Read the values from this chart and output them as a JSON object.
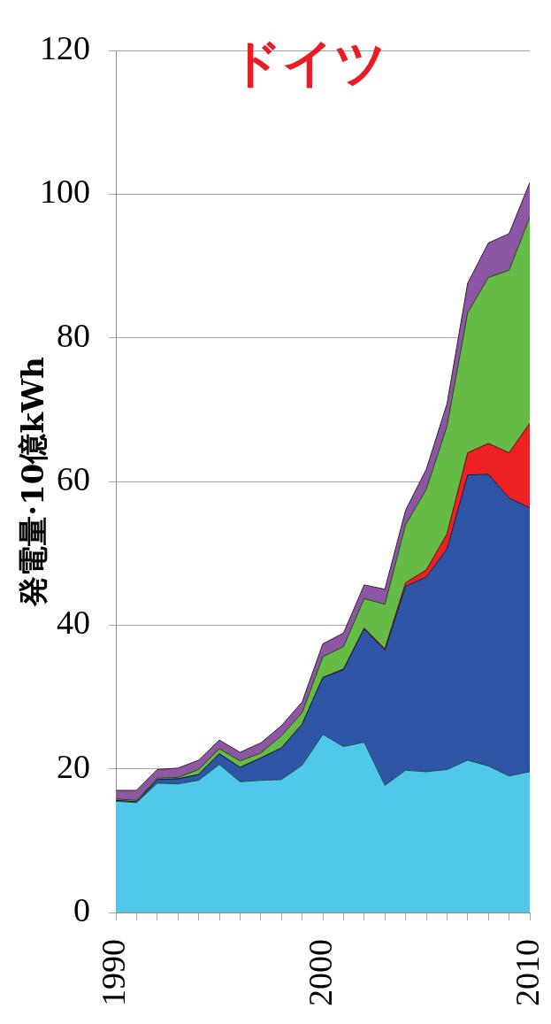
{
  "chart_data": {
    "type": "area",
    "title": "ドイツ",
    "ylabel": "発電量·10億kWh",
    "stacked": true,
    "grid": "y",
    "x": [
      1990,
      1991,
      1992,
      1993,
      1994,
      1995,
      1996,
      1997,
      1998,
      1999,
      2000,
      2001,
      2002,
      2003,
      2004,
      2005,
      2006,
      2007,
      2008,
      2009,
      2010
    ],
    "xlim": [
      1990,
      2010
    ],
    "xticks": [
      1990,
      {
        "value": 1991,
        "label": null
      },
      {
        "value": 1992,
        "label": null
      },
      {
        "value": 1993,
        "label": null
      },
      {
        "value": 1994,
        "label": null
      },
      {
        "value": 1995,
        "label": null
      },
      {
        "value": 1996,
        "label": null
      },
      {
        "value": 1997,
        "label": null
      },
      {
        "value": 1998,
        "label": null
      },
      {
        "value": 1999,
        "label": null
      },
      2000,
      {
        "value": 2001,
        "label": null
      },
      {
        "value": 2002,
        "label": null
      },
      {
        "value": 2003,
        "label": null
      },
      {
        "value": 2004,
        "label": null
      },
      {
        "value": 2005,
        "label": null
      },
      {
        "value": 2006,
        "label": null
      },
      {
        "value": 2007,
        "label": null
      },
      {
        "value": 2008,
        "label": null
      },
      {
        "value": 2009,
        "label": null
      },
      2010
    ],
    "ylim": [
      0,
      120
    ],
    "yticks": [
      0,
      20,
      40,
      60,
      80,
      100,
      120
    ],
    "series": [
      {
        "color": "#4fc8e9",
        "values": [
          15.5,
          15.3,
          18.0,
          17.9,
          18.4,
          20.6,
          18.2,
          18.4,
          18.5,
          20.5,
          24.8,
          23.1,
          23.7,
          17.7,
          19.8,
          19.6,
          19.9,
          21.2,
          20.4,
          19.0,
          19.6
        ]
      },
      {
        "color": "#2f56a6",
        "values": [
          0.1,
          0.1,
          0.5,
          0.7,
          0.8,
          1.5,
          2.0,
          3.1,
          4.4,
          5.7,
          7.9,
          10.7,
          15.8,
          18.8,
          25.6,
          27.1,
          30.7,
          39.7,
          40.6,
          38.7,
          36.7
        ]
      },
      {
        "color": "#ed2124",
        "values": [
          0,
          0,
          0,
          0,
          0,
          0,
          0,
          0,
          0,
          0,
          0,
          0.1,
          0.1,
          0.2,
          0.5,
          1.0,
          2.1,
          3.1,
          4.3,
          6.3,
          11.8
        ]
      },
      {
        "color": "#66bb47",
        "values": [
          0.2,
          0.2,
          0.2,
          0.2,
          0.7,
          0.7,
          0.9,
          0.7,
          1.7,
          1.6,
          2.9,
          3.1,
          4.1,
          6.2,
          8.1,
          11.2,
          15.0,
          19.5,
          23.1,
          25.4,
          28.7
        ]
      },
      {
        "color": "#8e57a3",
        "values": [
          1.2,
          1.4,
          1.2,
          1.3,
          1.3,
          1.2,
          1.2,
          1.4,
          1.4,
          1.5,
          1.8,
          1.9,
          1.9,
          2.1,
          2.0,
          2.8,
          3.1,
          4.1,
          4.8,
          5.1,
          4.8
        ]
      }
    ]
  }
}
